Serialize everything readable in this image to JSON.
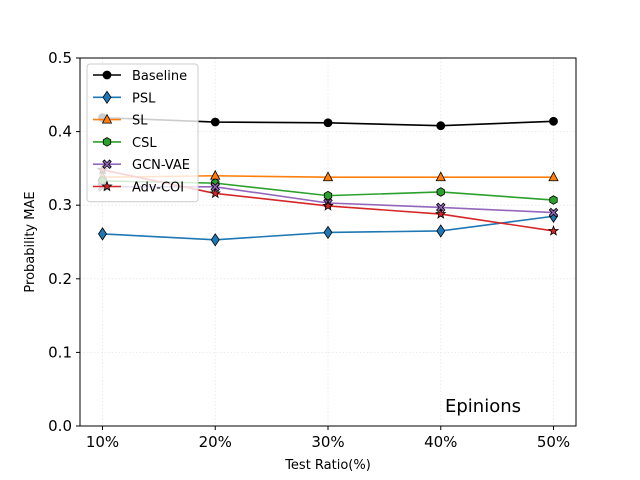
{
  "chart_data": {
    "type": "line",
    "title": "",
    "xlabel": "Test Ratio(%)",
    "ylabel": "Probability MAE",
    "categories": [
      "10%",
      "20%",
      "30%",
      "40%",
      "50%"
    ],
    "ylim": [
      0.0,
      0.5
    ],
    "yticks": [
      0.0,
      0.1,
      0.2,
      0.3,
      0.4,
      0.5
    ],
    "ytick_labels": [
      "0.0",
      "0.1",
      "0.2",
      "0.3",
      "0.4",
      "0.5"
    ],
    "grid": true,
    "legend_position": "top-left",
    "annotation": "Epinions",
    "series": [
      {
        "name": "Baseline",
        "color": "#000000",
        "marker": "circle",
        "values": [
          0.419,
          0.413,
          0.412,
          0.408,
          0.414
        ]
      },
      {
        "name": "PSL",
        "color": "#1f77b4",
        "marker": "diamond",
        "values": [
          0.261,
          0.253,
          0.263,
          0.265,
          0.285
        ]
      },
      {
        "name": "SL",
        "color": "#ff7f0e",
        "marker": "triangle",
        "values": [
          0.338,
          0.34,
          0.338,
          0.338,
          0.338
        ]
      },
      {
        "name": "CSL",
        "color": "#2ca02c",
        "marker": "hexagon",
        "values": [
          0.333,
          0.33,
          0.313,
          0.318,
          0.307
        ]
      },
      {
        "name": "GCN-VAE",
        "color": "#9467bd",
        "marker": "x",
        "values": [
          0.325,
          0.325,
          0.303,
          0.297,
          0.29
        ]
      },
      {
        "name": "Adv-COI",
        "color": "#d62728",
        "marker": "star",
        "values": [
          0.348,
          0.316,
          0.299,
          0.288,
          0.265
        ]
      }
    ]
  }
}
